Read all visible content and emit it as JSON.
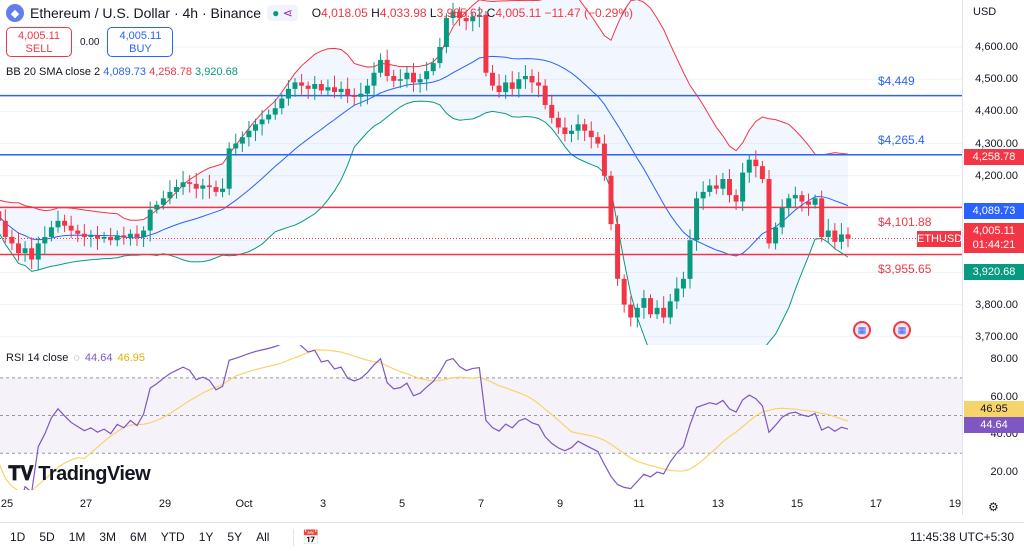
{
  "header": {
    "symbol_title": "Ethereum / U.S. Dollar · 4h · Binance",
    "open_label": "O",
    "open": "4,018.05",
    "high_label": "H",
    "high": "4,033.98",
    "low_label": "L",
    "low": "3,985.62",
    "close_label": "C",
    "close": "4,005.11",
    "change": "−11.47 (−0.29%)"
  },
  "trade": {
    "sell_price": "4,005.11",
    "sell_label": "SELL",
    "spread": "0.00",
    "buy_price": "4,005.11",
    "buy_label": "BUY"
  },
  "bb": {
    "label": "BB 20 SMA close 2",
    "basis": "4,089.73",
    "upper": "4,258.78",
    "lower": "3,920.68"
  },
  "currency": "USD",
  "price_axis": [
    "4,600.00",
    "4,500.00",
    "4,400.00",
    "4,300.00",
    "4,200.00",
    "3,800.00",
    "3,700.00"
  ],
  "price_axis_values": [
    4600,
    4500,
    4400,
    4300,
    4200,
    3800,
    3700
  ],
  "tags": {
    "upper": "4,258.78",
    "basis": "4,089.73",
    "symbol": "ETHUSD",
    "last": "4,005.11",
    "countdown": "01:44:21",
    "lower": "3,920.68"
  },
  "levels": [
    {
      "label": "$4,449",
      "value": 4449,
      "color": "#2962ff"
    },
    {
      "label": "$4,265.4",
      "value": 4265.4,
      "color": "#2962ff"
    },
    {
      "label": "$4,101.88",
      "value": 4101.88,
      "color": "#f23645"
    },
    {
      "label": "$3,955.65",
      "value": 3955.65,
      "color": "#f23645"
    }
  ],
  "rsi": {
    "label": "RSI 14 close",
    "value": "44.64",
    "ma": "46.95",
    "axis": [
      "80.00",
      "60.00",
      "40.00",
      "20.00"
    ]
  },
  "dates": [
    "25",
    "27",
    "29",
    "Oct",
    "3",
    "5",
    "7",
    "9",
    "11",
    "13",
    "15",
    "17",
    "19"
  ],
  "ranges": [
    "1D",
    "5D",
    "1M",
    "3M",
    "6M",
    "YTD",
    "1Y",
    "5Y",
    "All"
  ],
  "clock": "11:45:38 UTC+5:30",
  "brand": "TradingView",
  "colors": {
    "up": "#089981",
    "down": "#f23645",
    "bb_basis": "#2962ff",
    "bb_upper": "#f23645",
    "bb_lower": "#089981",
    "rsi": "#7e57c2",
    "rsi_ma": "#f7d46b"
  },
  "chart_data": {
    "type": "candlestick",
    "interval": "4h",
    "ylim": [
      3680,
      4750
    ],
    "closes": [
      4090,
      4060,
      4010,
      3990,
      3960,
      3975,
      3940,
      3990,
      4010,
      4040,
      4060,
      4045,
      4030,
      4020,
      4010,
      4015,
      4005,
      4010,
      4000,
      4015,
      4008,
      4020,
      4010,
      4030,
      4095,
      4110,
      4130,
      4150,
      4165,
      4180,
      4175,
      4160,
      4170,
      4165,
      4150,
      4160,
      4285,
      4300,
      4320,
      4340,
      4360,
      4375,
      4390,
      4410,
      4440,
      4470,
      4490,
      4480,
      4470,
      4485,
      4465,
      4475,
      4460,
      4470,
      4450,
      4445,
      4455,
      4480,
      4520,
      4560,
      4510,
      4495,
      4500,
      4520,
      4490,
      4500,
      4525,
      4550,
      4600,
      4690,
      4710,
      4690,
      4680,
      4695,
      4700,
      4520,
      4480,
      4460,
      4490,
      4470,
      4500,
      4510,
      4490,
      4480,
      4420,
      4380,
      4350,
      4330,
      4340,
      4360,
      4340,
      4320,
      4300,
      4200,
      4050,
      3880,
      3800,
      3760,
      3790,
      3820,
      3770,
      3790,
      3760,
      3810,
      3850,
      3880,
      4000,
      4130,
      4150,
      4170,
      4160,
      4190,
      4140,
      4120,
      4210,
      4250,
      4230,
      4190,
      3990,
      4040,
      4100,
      4130,
      4140,
      4120,
      4110,
      4130,
      4010,
      4030,
      3995,
      4018,
      4005
    ]
  }
}
